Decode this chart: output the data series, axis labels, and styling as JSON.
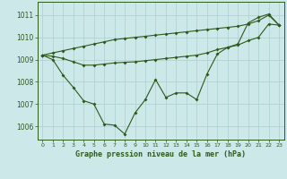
{
  "x": [
    0,
    1,
    2,
    3,
    4,
    5,
    6,
    7,
    8,
    9,
    10,
    11,
    12,
    13,
    14,
    15,
    16,
    17,
    18,
    19,
    20,
    21,
    22,
    23
  ],
  "line_main": [
    1009.2,
    1009.0,
    1008.3,
    1007.75,
    1007.15,
    1007.0,
    1006.1,
    1006.05,
    1005.65,
    1006.6,
    1007.2,
    1008.1,
    1007.3,
    1007.5,
    1007.5,
    1007.2,
    1008.35,
    1009.25,
    1009.55,
    1009.7,
    1010.65,
    1010.9,
    1011.05,
    1010.55
  ],
  "line_trend1": [
    1009.2,
    1009.3,
    1009.4,
    1009.5,
    1009.6,
    1009.7,
    1009.8,
    1009.9,
    1009.95,
    1010.0,
    1010.05,
    1010.1,
    1010.15,
    1010.2,
    1010.25,
    1010.3,
    1010.35,
    1010.4,
    1010.45,
    1010.5,
    1010.6,
    1010.75,
    1011.0,
    1010.55
  ],
  "line_trend2": [
    1009.2,
    1009.15,
    1009.05,
    1008.9,
    1008.75,
    1008.75,
    1008.8,
    1008.85,
    1008.88,
    1008.9,
    1008.95,
    1009.0,
    1009.05,
    1009.1,
    1009.15,
    1009.2,
    1009.3,
    1009.45,
    1009.55,
    1009.65,
    1009.85,
    1010.0,
    1010.6,
    1010.55
  ],
  "line_color": "#2d5a1b",
  "bg_color": "#cce8e8",
  "grid_color": "#aacfcf",
  "ylim": [
    1005.4,
    1011.6
  ],
  "yticks": [
    1006,
    1007,
    1008,
    1009,
    1010,
    1011
  ],
  "xlabel": "Graphe pression niveau de la mer (hPa)"
}
